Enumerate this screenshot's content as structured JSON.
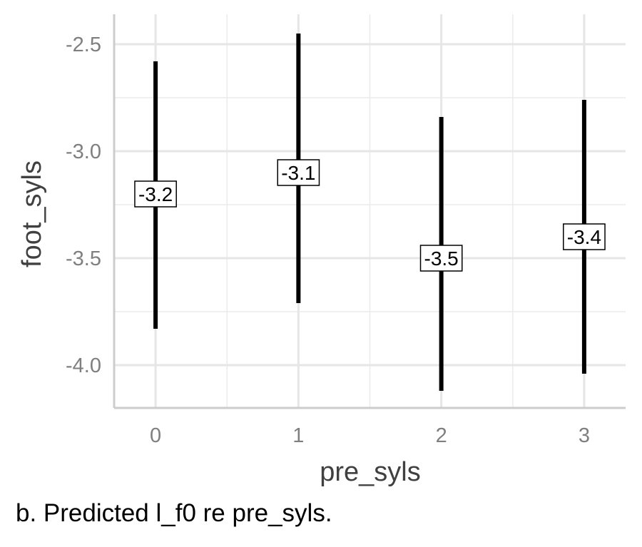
{
  "chart_data": {
    "type": "errorbar",
    "x": [
      0,
      1,
      2,
      3
    ],
    "estimate": [
      -3.2,
      -3.1,
      -3.5,
      -3.4
    ],
    "lower": [
      -3.83,
      -3.71,
      -4.12,
      -4.04
    ],
    "upper": [
      -2.58,
      -2.45,
      -2.84,
      -2.76
    ],
    "labels": [
      "-3.2",
      "-3.1",
      "-3.5",
      "-3.4"
    ],
    "xlabel": "pre_syls",
    "ylabel": "foot_syls",
    "x_ticks": [
      "0",
      "1",
      "2",
      "3"
    ],
    "y_ticks": [
      "-2.5",
      "-3.0",
      "-3.5",
      "-4.0"
    ],
    "y_tick_values": [
      -2.5,
      -3.0,
      -3.5,
      -4.0
    ],
    "xlim": [
      -0.29,
      3.29
    ],
    "ylim": [
      -4.2,
      -2.36
    ],
    "grid": true
  },
  "caption": "b. Predicted l_f0 re pre_syls."
}
